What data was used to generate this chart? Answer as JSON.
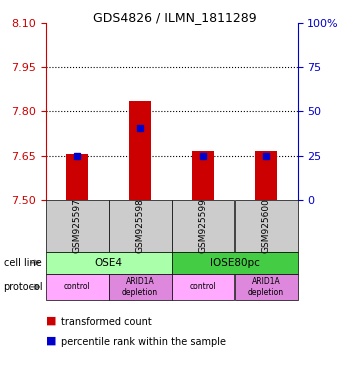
{
  "title": "GDS4826 / ILMN_1811289",
  "samples": [
    "GSM925597",
    "GSM925598",
    "GSM925599",
    "GSM925600"
  ],
  "transformed_counts": [
    7.656,
    7.836,
    7.665,
    7.665
  ],
  "percentile_ranks": [
    7.65,
    7.745,
    7.65,
    7.65
  ],
  "ylim_left": [
    7.5,
    8.1
  ],
  "ylim_right": [
    0,
    100
  ],
  "yticks_left": [
    7.5,
    7.65,
    7.8,
    7.95,
    8.1
  ],
  "yticks_right": [
    0,
    25,
    50,
    75,
    100
  ],
  "cell_lines": [
    [
      "OSE4",
      0,
      2
    ],
    [
      "IOSE80pc",
      2,
      4
    ]
  ],
  "protocols": [
    [
      "control",
      0,
      1
    ],
    [
      "ARID1A\ndepletion",
      1,
      2
    ],
    [
      "control",
      2,
      3
    ],
    [
      "ARID1A\ndepletion",
      3,
      4
    ]
  ],
  "cell_line_colors": {
    "OSE4": "#aaffaa",
    "IOSE80pc": "#44cc44"
  },
  "protocol_colors": {
    "control": "#ffaaff",
    "ARID1A\ndepletion": "#dd88dd"
  },
  "sample_box_color": "#cccccc",
  "bar_color": "#cc0000",
  "marker_color": "#0000cc",
  "left_axis_color": "#cc0000",
  "right_axis_color": "#0000cc",
  "grid_color": "#000000",
  "legend_items": [
    "transformed count",
    "percentile rank within the sample"
  ],
  "legend_colors": [
    "#cc0000",
    "#0000cc"
  ],
  "grid_ticks": [
    7.65,
    7.8,
    7.95
  ]
}
